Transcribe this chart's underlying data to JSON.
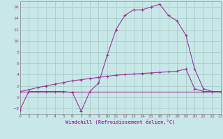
{
  "bg_color": "#c8e8e8",
  "grid_color": "#a8cccc",
  "line_color": "#993399",
  "xlim": [
    0,
    23
  ],
  "ylim": [
    -3,
    17
  ],
  "yticks": [
    -2,
    0,
    2,
    4,
    6,
    8,
    10,
    12,
    14,
    16
  ],
  "xticks": [
    0,
    1,
    2,
    3,
    4,
    5,
    6,
    7,
    8,
    9,
    10,
    11,
    12,
    13,
    14,
    15,
    16,
    17,
    18,
    19,
    20,
    21,
    22,
    23
  ],
  "xlabel": "Windchill (Refroidissement éolien,°C)",
  "series1_x": [
    0,
    1,
    2,
    3,
    4,
    5,
    6,
    7,
    8,
    9,
    10,
    11,
    12,
    13,
    14,
    15,
    16,
    17,
    18,
    19,
    20,
    21,
    22,
    23
  ],
  "series1_y": [
    -2.2,
    1,
    1,
    1,
    1,
    1,
    0.8,
    -2.5,
    1,
    2.5,
    7.5,
    12,
    14.5,
    15.5,
    15.5,
    16,
    16.5,
    14.5,
    13.5,
    11,
    5,
    1.5,
    1,
    1
  ],
  "series2_x": [
    0,
    23
  ],
  "series2_y": [
    1,
    1
  ],
  "series3_x": [
    0,
    1,
    2,
    3,
    4,
    5,
    6,
    7,
    8,
    9,
    10,
    11,
    12,
    13,
    14,
    15,
    16,
    17,
    18,
    19,
    20,
    21,
    22,
    23
  ],
  "series3_y": [
    1,
    1.3,
    1.7,
    2.0,
    2.3,
    2.6,
    2.9,
    3.1,
    3.3,
    3.5,
    3.7,
    3.9,
    4.0,
    4.1,
    4.2,
    4.3,
    4.4,
    4.5,
    4.6,
    5.0,
    1.5,
    1.0,
    1.0,
    1.0
  ]
}
